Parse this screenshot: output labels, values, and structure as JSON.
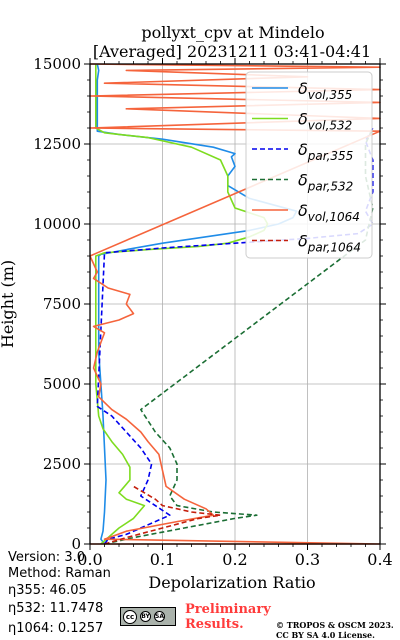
{
  "chart_data": {
    "type": "line",
    "title": "pollyxt_cpv at Mindelo",
    "subtitle": "[Averaged] 20231211 03:41-04:41",
    "xlabel": "Depolarization Ratio",
    "ylabel": "Height (m)",
    "xlim": [
      0,
      0.4
    ],
    "ylim": [
      0,
      15000
    ],
    "xticks": [
      "0.0",
      "0.1",
      "0.2",
      "0.3",
      "0.4"
    ],
    "yticks": [
      "0",
      "2500",
      "5000",
      "7500",
      "10000",
      "12500",
      "15000"
    ],
    "grid": true,
    "legend_position": "top-right",
    "series": [
      {
        "legend": "vol",
        "legend_sub": "355",
        "color": "#1f8ce8",
        "style": "solid",
        "points": [
          [
            0.02,
            0
          ],
          [
            0.015,
            150
          ],
          [
            0.018,
            400
          ],
          [
            0.02,
            1000
          ],
          [
            0.022,
            2000
          ],
          [
            0.02,
            3000
          ],
          [
            0.018,
            4000
          ],
          [
            0.015,
            5000
          ],
          [
            0.012,
            6000
          ],
          [
            0.012,
            7000
          ],
          [
            0.012,
            8000
          ],
          [
            0.012,
            9000
          ],
          [
            0.015,
            9050
          ],
          [
            0.05,
            9200
          ],
          [
            0.1,
            9400
          ],
          [
            0.16,
            9600
          ],
          [
            0.22,
            9800
          ],
          [
            0.26,
            10000
          ],
          [
            0.28,
            10200
          ],
          [
            0.285,
            10400
          ],
          [
            0.22,
            10800
          ],
          [
            0.19,
            11200
          ],
          [
            0.19,
            11500
          ],
          [
            0.2,
            11800
          ],
          [
            0.195,
            12100
          ],
          [
            0.2,
            12200
          ],
          [
            0.17,
            12400
          ],
          [
            0.1,
            12650
          ],
          [
            0.04,
            12800
          ],
          [
            0.01,
            12900
          ],
          [
            0.01,
            13500
          ],
          [
            0.01,
            14500
          ],
          [
            0.012,
            14800
          ],
          [
            0.01,
            15000
          ]
        ]
      },
      {
        "legend": "vol",
        "legend_sub": "532",
        "color": "#7ddc1f",
        "style": "solid",
        "points": [
          [
            0.015,
            0
          ],
          [
            0.025,
            200
          ],
          [
            0.04,
            500
          ],
          [
            0.06,
            800
          ],
          [
            0.075,
            1200
          ],
          [
            0.05,
            1400
          ],
          [
            0.04,
            1600
          ],
          [
            0.055,
            2000
          ],
          [
            0.055,
            2400
          ],
          [
            0.045,
            2800
          ],
          [
            0.03,
            3200
          ],
          [
            0.018,
            3600
          ],
          [
            0.012,
            4000
          ],
          [
            0.008,
            5000
          ],
          [
            0.008,
            6000
          ],
          [
            0.008,
            7000
          ],
          [
            0.008,
            8000
          ],
          [
            0.008,
            9000
          ],
          [
            0.02,
            9100
          ],
          [
            0.08,
            9200
          ],
          [
            0.15,
            9300
          ],
          [
            0.19,
            9400
          ],
          [
            0.22,
            9600
          ],
          [
            0.24,
            9800
          ],
          [
            0.245,
            10000
          ],
          [
            0.24,
            10200
          ],
          [
            0.2,
            10500
          ],
          [
            0.19,
            11000
          ],
          [
            0.19,
            11500
          ],
          [
            0.18,
            12000
          ],
          [
            0.14,
            12400
          ],
          [
            0.08,
            12700
          ],
          [
            0.02,
            12850
          ],
          [
            0.008,
            13000
          ],
          [
            0.008,
            14000
          ],
          [
            0.008,
            15000
          ]
        ]
      },
      {
        "legend": "par",
        "legend_sub": "355",
        "color": "#0000ee",
        "style": "dashed",
        "points": [
          [
            0.02,
            0
          ],
          [
            0.025,
            150
          ],
          [
            0.05,
            300
          ],
          [
            0.08,
            600
          ],
          [
            0.11,
            900
          ],
          [
            0.09,
            1200
          ],
          [
            0.07,
            1500
          ],
          [
            0.08,
            2000
          ],
          [
            0.085,
            2500
          ],
          [
            0.07,
            3000
          ],
          [
            0.05,
            3500
          ],
          [
            0.03,
            4000
          ],
          [
            0.01,
            4300
          ],
          [
            0.02,
            9100
          ],
          [
            0.1,
            9250
          ],
          [
            0.2,
            9400
          ],
          [
            0.3,
            9550
          ],
          [
            0.37,
            9700
          ],
          [
            0.39,
            10000
          ],
          [
            0.38,
            10400
          ],
          [
            0.39,
            11000
          ],
          [
            0.39,
            12000
          ],
          [
            0.38,
            12600
          ],
          [
            0.39,
            13000
          ]
        ]
      },
      {
        "legend": "par",
        "legend_sub": "532",
        "color": "#1b6e34",
        "style": "dashed",
        "points": [
          [
            0.02,
            0
          ],
          [
            0.06,
            200
          ],
          [
            0.13,
            500
          ],
          [
            0.2,
            800
          ],
          [
            0.23,
            900
          ],
          [
            0.17,
            1000
          ],
          [
            0.12,
            1200
          ],
          [
            0.11,
            1500
          ],
          [
            0.12,
            2000
          ],
          [
            0.12,
            2500
          ],
          [
            0.11,
            3000
          ],
          [
            0.09,
            3500
          ],
          [
            0.07,
            4200
          ],
          [
            0.38,
            9500
          ],
          [
            0.39,
            10500
          ],
          [
            0.38,
            11500
          ],
          [
            0.38,
            12500
          ],
          [
            0.39,
            13000
          ]
        ]
      },
      {
        "legend": "vol",
        "legend_sub": "1064",
        "color": "#f5643c",
        "style": "solid",
        "points": [
          [
            0.0,
            0
          ],
          [
            0.4,
            0
          ],
          [
            0.02,
            150
          ],
          [
            0.05,
            400
          ],
          [
            0.12,
            700
          ],
          [
            0.17,
            900
          ],
          [
            0.16,
            1100
          ],
          [
            0.13,
            1400
          ],
          [
            0.105,
            1800
          ],
          [
            0.1,
            2300
          ],
          [
            0.095,
            2800
          ],
          [
            0.08,
            3200
          ],
          [
            0.07,
            3500
          ],
          [
            0.05,
            3900
          ],
          [
            0.03,
            4200
          ],
          [
            0.012,
            4600
          ],
          [
            0.015,
            5000
          ],
          [
            0.005,
            5500
          ],
          [
            0.01,
            6000
          ],
          [
            0.02,
            6600
          ],
          [
            0.005,
            6800
          ],
          [
            0.04,
            7000
          ],
          [
            0.06,
            7200
          ],
          [
            0.05,
            7500
          ],
          [
            0.055,
            7800
          ],
          [
            0.025,
            8000
          ],
          [
            0.005,
            8300
          ],
          [
            0.01,
            8500
          ],
          [
            0.0,
            9000
          ],
          [
            0.01,
            9100
          ],
          [
            0.4,
            12900
          ],
          [
            0.0,
            13000
          ],
          [
            0.4,
            13300
          ],
          [
            0.05,
            13600
          ],
          [
            0.4,
            13800
          ],
          [
            0.0,
            14000
          ],
          [
            0.4,
            14200
          ],
          [
            0.02,
            14400
          ],
          [
            0.3,
            14600
          ],
          [
            0.05,
            14800
          ],
          [
            0.4,
            14900
          ],
          [
            0.0,
            15000
          ]
        ]
      },
      {
        "legend": "par",
        "legend_sub": "1064",
        "color": "#c41e0c",
        "style": "dashed",
        "points": [
          [
            0.02,
            0
          ],
          [
            0.05,
            200
          ],
          [
            0.1,
            500
          ],
          [
            0.15,
            800
          ],
          [
            0.18,
            900
          ],
          [
            0.14,
            1000
          ],
          [
            0.1,
            1200
          ],
          [
            0.09,
            1400
          ],
          [
            0.06,
            1800
          ]
        ]
      }
    ]
  },
  "info": {
    "version_label": "Version: 3.0",
    "method_label": "Method: Raman",
    "eta355_label": "η355:  46.05",
    "eta532_label": "η532: 11.7478",
    "eta1064_label": "η1064: 0.1257"
  },
  "footer": {
    "preliminary_line1": "Preliminary",
    "preliminary_line2": "Results.",
    "copyright_line1": "© TROPOS & OSCM 2023.",
    "copyright_line2": "CC BY SA 4.0 License."
  },
  "license_badge": {
    "cc_text": "cc",
    "by_text": "BY",
    "sa_text": "SA"
  }
}
